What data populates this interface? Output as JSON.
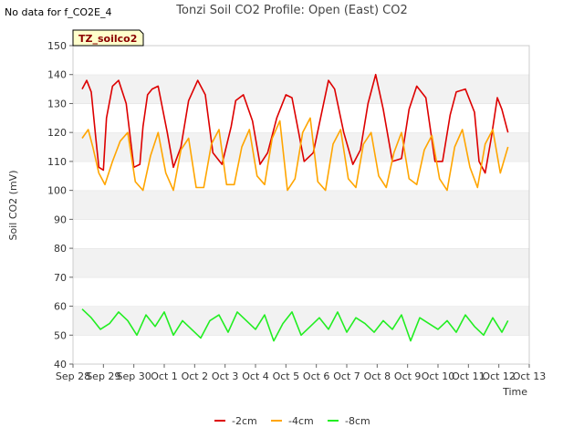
{
  "no_data_text": "No data for f_CO2E_4",
  "chart_data": {
    "type": "line",
    "title": "Tonzi Soil CO2 Profile: Open (East) CO2",
    "xlabel": "Time",
    "ylabel": "Soil CO2 (mV)",
    "ylim": [
      40,
      150
    ],
    "yticks": [
      40,
      50,
      60,
      70,
      80,
      90,
      100,
      110,
      120,
      130,
      140,
      150
    ],
    "xlim": [
      0,
      15
    ],
    "xtick_positions": [
      0,
      1,
      2,
      3,
      4,
      5,
      6,
      7,
      8,
      9,
      10,
      11,
      12,
      13,
      14,
      15
    ],
    "xtick_labels": [
      "Sep 28",
      "Sep 29",
      "Sep 30",
      "Oct 1",
      "Oct 2",
      "Oct 3",
      "Oct 4",
      "Oct 5",
      "Oct 6",
      "Oct 7",
      "Oct 8",
      "Oct 9",
      "Oct 10",
      "Oct 11",
      "Oct 12",
      "Oct 13"
    ],
    "tag_label": "TZ_soilco2",
    "grid": "horizontal bands",
    "legend_position": "bottom",
    "series": [
      {
        "name": "-2cm",
        "color": "#dd0000",
        "x": [
          0.3,
          0.45,
          0.6,
          0.75,
          0.85,
          1.0,
          1.1,
          1.3,
          1.5,
          1.75,
          2.0,
          2.2,
          2.3,
          2.45,
          2.6,
          2.8,
          3.1,
          3.3,
          3.55,
          3.8,
          4.1,
          4.35,
          4.6,
          4.9,
          5.2,
          5.35,
          5.6,
          5.9,
          6.15,
          6.4,
          6.7,
          7.0,
          7.2,
          7.4,
          7.6,
          7.9,
          8.2,
          8.4,
          8.6,
          8.9,
          9.2,
          9.45,
          9.7,
          9.95,
          10.2,
          10.5,
          10.8,
          11.05,
          11.3,
          11.6,
          11.9,
          12.15,
          12.4,
          12.6,
          12.9,
          13.2,
          13.35,
          13.55,
          13.75,
          13.95,
          14.1,
          14.3
        ],
        "y": [
          135,
          138,
          134,
          118,
          108,
          107,
          125,
          136,
          138,
          130,
          108,
          109,
          122,
          133,
          135,
          136,
          120,
          108,
          115,
          131,
          138,
          133,
          113,
          109,
          122,
          131,
          133,
          124,
          109,
          113,
          125,
          133,
          132,
          121,
          110,
          113,
          128,
          138,
          135,
          120,
          109,
          114,
          130,
          140,
          128,
          110,
          111,
          128,
          136,
          132,
          110,
          110,
          126,
          134,
          135,
          127,
          110,
          106,
          118,
          132,
          128,
          120
        ]
      },
      {
        "name": "-4cm",
        "color": "#ffa500",
        "x": [
          0.3,
          0.5,
          0.65,
          0.85,
          1.05,
          1.3,
          1.55,
          1.8,
          2.05,
          2.3,
          2.55,
          2.8,
          3.05,
          3.3,
          3.55,
          3.8,
          4.05,
          4.3,
          4.55,
          4.8,
          5.05,
          5.3,
          5.55,
          5.8,
          6.05,
          6.3,
          6.55,
          6.8,
          7.05,
          7.3,
          7.55,
          7.8,
          8.05,
          8.3,
          8.55,
          8.8,
          9.05,
          9.3,
          9.55,
          9.8,
          10.05,
          10.3,
          10.55,
          10.8,
          11.05,
          11.3,
          11.55,
          11.8,
          12.05,
          12.3,
          12.55,
          12.8,
          13.05,
          13.3,
          13.55,
          13.8,
          14.05,
          14.3
        ],
        "y": [
          118,
          121,
          115,
          106,
          102,
          110,
          117,
          120,
          103,
          100,
          112,
          120,
          106,
          100,
          114,
          118,
          101,
          101,
          116,
          121,
          102,
          102,
          115,
          121,
          105,
          102,
          118,
          124,
          100,
          104,
          120,
          125,
          103,
          100,
          116,
          121,
          104,
          101,
          116,
          120,
          105,
          101,
          113,
          120,
          104,
          102,
          114,
          119,
          104,
          100,
          115,
          121,
          108,
          101,
          116,
          121,
          106,
          115
        ]
      },
      {
        "name": "-8cm",
        "color": "#22ee22",
        "x": [
          0.3,
          0.6,
          0.9,
          1.2,
          1.5,
          1.8,
          2.1,
          2.4,
          2.7,
          3.0,
          3.3,
          3.6,
          3.9,
          4.2,
          4.5,
          4.8,
          5.1,
          5.4,
          5.7,
          6.0,
          6.3,
          6.6,
          6.9,
          7.2,
          7.5,
          7.8,
          8.1,
          8.4,
          8.7,
          9.0,
          9.3,
          9.6,
          9.9,
          10.2,
          10.5,
          10.8,
          11.1,
          11.4,
          11.7,
          12.0,
          12.3,
          12.6,
          12.9,
          13.2,
          13.5,
          13.8,
          14.1,
          14.3
        ],
        "y": [
          59,
          56,
          52,
          54,
          58,
          55,
          50,
          57,
          53,
          58,
          50,
          55,
          52,
          49,
          55,
          57,
          51,
          58,
          55,
          52,
          57,
          48,
          54,
          58,
          50,
          53,
          56,
          52,
          58,
          51,
          56,
          54,
          51,
          55,
          52,
          57,
          48,
          56,
          54,
          52,
          55,
          51,
          57,
          53,
          50,
          56,
          51,
          55
        ]
      }
    ]
  }
}
